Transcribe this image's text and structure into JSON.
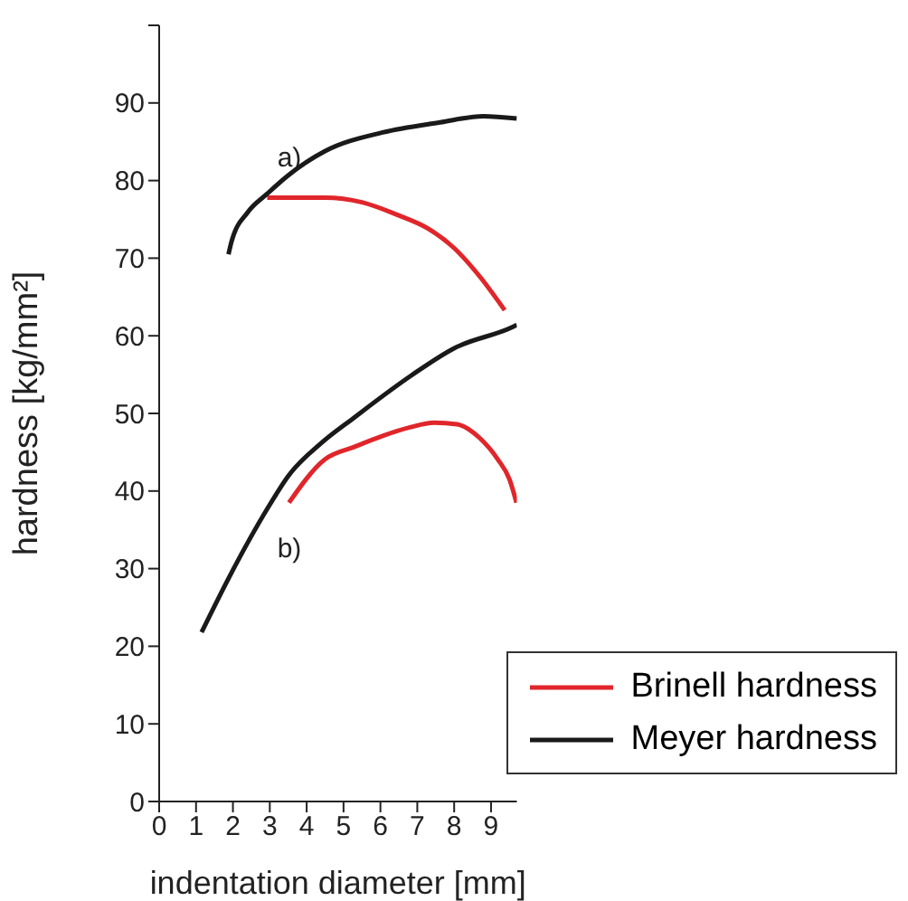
{
  "chart_data": {
    "type": "line",
    "xlabel": "indentation diameter [mm]",
    "ylabel": "hardness [kg/mm²]",
    "xlim": [
      0,
      9.7
    ],
    "xticks": [
      0,
      1,
      2,
      3,
      4,
      5,
      6,
      7,
      8,
      9
    ],
    "ylim": [
      0,
      100
    ],
    "yticks": [
      0,
      10,
      20,
      30,
      40,
      50,
      60,
      70,
      80,
      90,
      {
        "value": 100,
        "label": null
      }
    ],
    "legend": "bottom right",
    "line_style": "solid",
    "marker": "none",
    "annotations": [
      "a)",
      "b)"
    ],
    "series": [
      {
        "name": "Brinell hardness",
        "color": "#e0262b",
        "x": [
          2.93,
          4.5,
          5.5,
          6.45,
          7.3,
          8.0,
          8.7,
          9.37
        ],
        "values": [
          77.8,
          77.8,
          77.2,
          75.6,
          73.8,
          71.3,
          67.6,
          63.3
        ]
      },
      {
        "name": "Meyer hardness",
        "color": "#1a1a1a",
        "x": [
          1.88,
          1.96,
          2.4,
          2.93,
          3.48,
          4.5,
          6.06,
          7.62,
          8.79,
          9.7
        ],
        "values": [
          70.5,
          72.1,
          75.9,
          78.3,
          80.6,
          83.8,
          86.2,
          87.5,
          88.3,
          88.0
        ]
      },
      {
        "color": "#e0262b",
        "x": [
          3.52,
          4.5,
          5.3,
          6.06,
          6.8,
          7.46,
          8.08,
          8.7,
          9.18,
          9.5,
          9.69
        ],
        "values": [
          38.5,
          44.1,
          45.7,
          47.1,
          48.2,
          48.8,
          48.6,
          46.8,
          44.1,
          41.5,
          38.5
        ]
      },
      {
        "color": "#1a1a1a",
        "x": [
          1.15,
          1.92,
          2.93,
          3.51,
          4.4,
          5.27,
          6.84,
          8.0,
          9.57,
          9.7
        ],
        "values": [
          21.8,
          29.1,
          37.7,
          42.0,
          46.2,
          49.4,
          54.9,
          58.4,
          61.1,
          61.4
        ]
      }
    ]
  }
}
